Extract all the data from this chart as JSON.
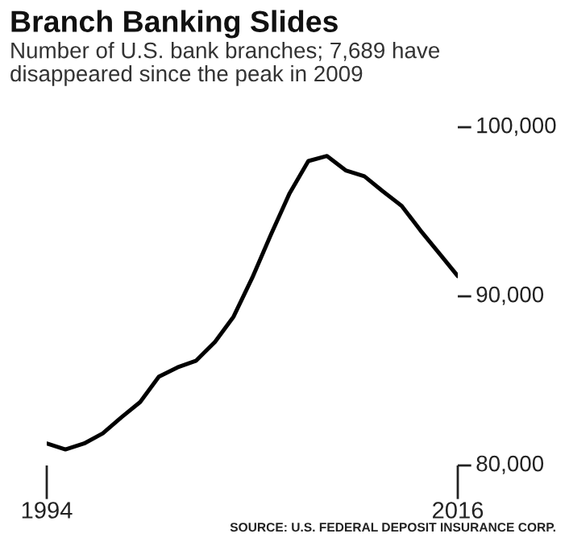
{
  "chart_data": {
    "type": "line",
    "title": "Branch Banking Slides",
    "subtitle": "Number of U.S. bank branches; 7,689 have\ndisappeared since the peak in 2009",
    "annotations": [
      "SOURCE: U.S. FEDERAL DEPOSIT INSURANCE CORP."
    ],
    "x": [
      1994,
      1995,
      1996,
      1997,
      1998,
      1999,
      2000,
      2001,
      2002,
      2003,
      2004,
      2005,
      2006,
      2007,
      2008,
      2009,
      2010,
      2011,
      2012,
      2013,
      2014,
      2015,
      2016
    ],
    "series": [
      {
        "color": "#000000",
        "values": [
          81300,
          80950,
          81300,
          81900,
          82850,
          83750,
          85250,
          85800,
          86200,
          87300,
          88800,
          91100,
          93650,
          96100,
          98000,
          98300,
          97450,
          97100,
          96200,
          95350,
          93900,
          92550,
          91200
        ]
      }
    ],
    "xlim": [
      1994,
      2016
    ],
    "xticks": [
      1994,
      2016
    ],
    "ylim": [
      80000,
      100000
    ],
    "yticks": [
      {
        "value": 80000,
        "label": "80,000"
      },
      {
        "value": 90000,
        "label": "90,000"
      },
      {
        "value": 100000,
        "label": "100,000"
      }
    ],
    "grid": false,
    "legend": false
  }
}
